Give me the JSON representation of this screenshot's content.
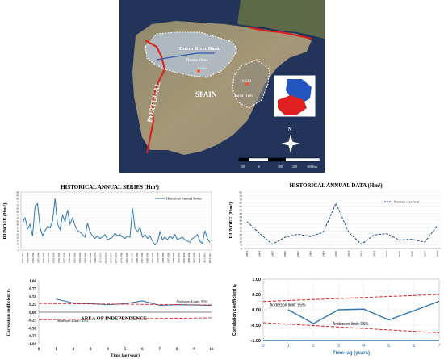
{
  "map": {
    "labels": {
      "duero_basin": "Duero River Basin",
      "duero_river": "Duero river",
      "avila": "Avila",
      "portugal": "PORTUGAL",
      "spain": "SPAIN",
      "jucar": "Jucar river",
      "ebro": "8030",
      "north": "N",
      "scale_ticks": [
        "100",
        "0",
        "100",
        "200",
        "300 Km"
      ]
    },
    "colors": {
      "basin": "#b7c8dd",
      "border": "#e01a1a",
      "land": "#a2967a",
      "sea": "#22345a"
    }
  },
  "chart_data": [
    {
      "type": "line",
      "title": "HISTORICAL ANNUAL SERIES (Hm³)",
      "ylabel": "RUNOFF (Hm³)",
      "ylim": [
        0,
        90
      ],
      "yticks": [
        "0",
        "5",
        "10",
        "15",
        "20",
        "25",
        "30",
        "35",
        "40",
        "45",
        "50",
        "55",
        "60",
        "65",
        "70",
        "75",
        "80",
        "85",
        "90"
      ],
      "xticks": [
        "1941-1942",
        "1943-1944",
        "1945-1946",
        "1947-1948",
        "1949-1950",
        "1951-1952",
        "1953-1954",
        "1955-1956",
        "1957-1958",
        "1959-1960",
        "1961-1962",
        "1963-1964",
        "1965-1966",
        "1967-1968",
        "1969-1970",
        "1971-1972",
        "1973-1974",
        "1975-1976",
        "1977-1978",
        "1979-1980",
        "1981-1982",
        "1983-1984",
        "1985-1986",
        "1987-1988",
        "1989-1990",
        "1991-1992",
        "1993-1994",
        "1995-1996",
        "1997-1998",
        "1999-2000",
        "2001-2002",
        "2003-2004",
        "2005-2006",
        "2007-2008",
        "2009-2010",
        "2011-2012",
        "2013-2014"
      ],
      "series": [
        {
          "name": "Historical Annual Series",
          "color": "#2f75b5",
          "values": [
            42,
            50,
            33,
            40,
            22,
            68,
            72,
            35,
            22,
            30,
            37,
            35,
            45,
            80,
            40,
            32,
            54,
            44,
            62,
            40,
            50,
            38,
            30,
            28,
            24,
            20,
            42,
            28,
            22,
            18,
            22,
            18,
            20,
            24,
            16,
            18,
            20,
            26,
            22,
            24,
            20,
            18,
            22,
            20,
            65,
            34,
            28,
            36,
            20,
            24,
            18,
            22,
            14,
            8,
            12,
            28,
            16,
            20,
            16,
            22,
            18,
            24,
            16,
            18,
            20,
            16,
            14,
            12,
            18,
            20,
            24,
            14,
            10,
            30,
            18,
            12
          ]
        }
      ],
      "grid": true,
      "legend": "top-right"
    },
    {
      "type": "line",
      "xlabel": "Time lag (year)",
      "ylabel": "Correlation coefficient rₖ",
      "ylim": [
        -1.0,
        1.0
      ],
      "xlim": [
        0,
        10
      ],
      "yticks": [
        "1.00",
        "0.75",
        "0.50",
        "0.25",
        "0.00",
        "-0.25",
        "-0.50",
        "-0.75",
        "-1.00"
      ],
      "xticks": [
        "0",
        "1",
        "2",
        "3",
        "4",
        "5",
        "6",
        "7",
        "8",
        "9",
        "10"
      ],
      "series": [
        {
          "color": "#2f75b5",
          "x": [
            1,
            2,
            3,
            4,
            5,
            6,
            7,
            8,
            9,
            10
          ],
          "values": [
            0.42,
            0.29,
            0.27,
            0.24,
            0.27,
            0.36,
            0.22,
            0.24,
            0.23,
            0.22
          ]
        },
        {
          "color": "#e02020",
          "dash": true,
          "x": [
            0,
            10
          ],
          "values": [
            0.28,
            0.23
          ]
        },
        {
          "color": "#e02020",
          "dash": true,
          "x": [
            0,
            10
          ],
          "values": [
            -0.24,
            -0.18
          ]
        }
      ],
      "annotations": [
        "Anderson Limit: 95%",
        "AREA OF INDEPENDENCE",
        "Anderson Limit: 95%"
      ]
    },
    {
      "type": "line",
      "title": "HISTORICAL ANNUAL DATA (Hm³)",
      "ylabel": "RUNOFF (Hm³)",
      "ylim": [
        0,
        80
      ],
      "yticks": [
        "0",
        "5",
        "10",
        "15",
        "20",
        "25",
        "30",
        "35",
        "40",
        "45",
        "50",
        "55",
        "60",
        "65",
        "70",
        "75",
        "80"
      ],
      "categories": [
        "2003",
        "2004",
        "2005",
        "2006",
        "2007",
        "2008",
        "2009",
        "2010",
        "2011",
        "2012",
        "2013",
        "2014",
        "2015",
        "2016",
        "2017",
        "2018"
      ],
      "series": [
        {
          "name": "Serones reservoir",
          "color": "#1f4e8c",
          "dash": true,
          "values": [
            38,
            21,
            6,
            16,
            20,
            17,
            23,
            64,
            23,
            6,
            19,
            21,
            12,
            13,
            9,
            33
          ]
        }
      ],
      "grid": true,
      "legend": "top-right"
    },
    {
      "type": "line",
      "xlabel": "Time-lag (years)",
      "ylabel": "Correlation coefficient rₖ",
      "ylim": [
        -1.0,
        1.0
      ],
      "xlim": [
        0,
        7
      ],
      "yticks": [
        "1.00",
        "0.50",
        "0.00",
        "-0.50",
        "-1.00"
      ],
      "xticks": [
        "0",
        "1",
        "2",
        "3",
        "4",
        "5",
        "6",
        "7"
      ],
      "series": [
        {
          "color": "#2f75b5",
          "x": [
            1,
            2,
            3,
            4,
            5,
            6,
            7
          ],
          "values": [
            0.0,
            -0.45,
            0.0,
            0.02,
            -0.33,
            -0.03,
            0.28
          ]
        },
        {
          "color": "#e02020",
          "dash": true,
          "x": [
            0,
            7
          ],
          "values": [
            0.27,
            0.5
          ]
        },
        {
          "color": "#e02020",
          "dash": true,
          "x": [
            0,
            7
          ],
          "values": [
            -0.42,
            -0.75
          ]
        },
        {
          "color": "#2f75b5",
          "x": [
            0,
            7
          ],
          "values": [
            -1.0,
            -1.0
          ]
        }
      ],
      "annotations": [
        "Anderson  limit: 95%",
        "Anderson  limit: 95%"
      ]
    }
  ]
}
